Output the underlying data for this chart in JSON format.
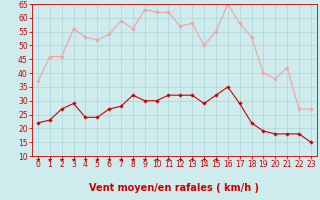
{
  "hours": [
    0,
    1,
    2,
    3,
    4,
    5,
    6,
    7,
    8,
    9,
    10,
    11,
    12,
    13,
    14,
    15,
    16,
    17,
    18,
    19,
    20,
    21,
    22,
    23
  ],
  "wind_avg": [
    22,
    23,
    27,
    29,
    24,
    24,
    27,
    28,
    32,
    30,
    30,
    32,
    32,
    32,
    29,
    32,
    35,
    29,
    22,
    19,
    18,
    18,
    18,
    15
  ],
  "wind_gust": [
    37,
    46,
    46,
    56,
    53,
    52,
    54,
    59,
    56,
    63,
    62,
    62,
    57,
    58,
    50,
    55,
    65,
    58,
    53,
    40,
    38,
    42,
    27,
    27
  ],
  "bg_color": "#ceeced",
  "grid_color": "#aed4d6",
  "avg_color": "#cc0000",
  "gust_color": "#f4a0a0",
  "xlabel": "Vent moyen/en rafales ( km/h )",
  "xlabel_color": "#cc0000",
  "ylim": [
    10,
    65
  ],
  "yticks": [
    10,
    15,
    20,
    25,
    30,
    35,
    40,
    45,
    50,
    55,
    60,
    65
  ],
  "xticks": [
    0,
    1,
    2,
    3,
    4,
    5,
    6,
    7,
    8,
    9,
    10,
    11,
    12,
    13,
    14,
    15,
    16,
    17,
    18,
    19,
    20,
    21,
    22,
    23
  ],
  "tick_color": "#cc0000",
  "tick_fontsize": 5.5,
  "xlabel_fontsize": 7.0,
  "arrow_dirs_NE": [
    0,
    1,
    2,
    3,
    4,
    5,
    6,
    7,
    8,
    9,
    10,
    11,
    12,
    13,
    14,
    15
  ],
  "arrow_dirs_E": [
    16,
    17,
    18,
    19,
    20,
    21,
    22,
    23
  ]
}
